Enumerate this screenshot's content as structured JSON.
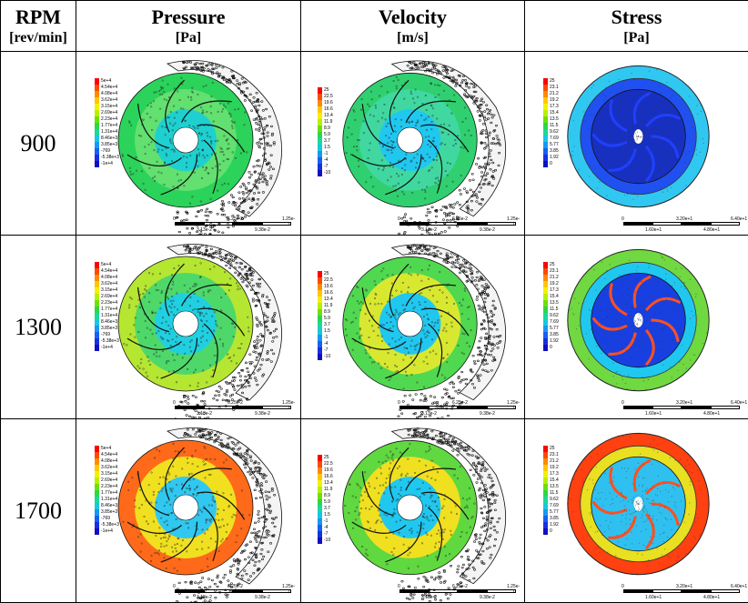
{
  "headers": {
    "rpm": "RPM",
    "rpm_unit": "[rev/min]",
    "cols": [
      {
        "title": "Pressure",
        "unit": "[Pa]"
      },
      {
        "title": "Velocity",
        "unit": "[m/s]"
      },
      {
        "title": "Stress",
        "unit": "[Pa]"
      }
    ]
  },
  "rows": [
    {
      "rpm": "900",
      "variant": 0
    },
    {
      "rpm": "1300",
      "variant": 1
    },
    {
      "rpm": "1700",
      "variant": 2
    }
  ],
  "legends": {
    "pressure": [
      "5e+4",
      "4.54e+4",
      "4.08e+4",
      "3.62e+4",
      "3.15e+4",
      "2.69e+4",
      "2.23e+4",
      "1.77e+4",
      "1.31e+4",
      "8.46e+3",
      "3.85e+3",
      "-769",
      "-5.38e+3",
      "-1e+4"
    ],
    "velocity": [
      "25",
      "22.5",
      "19.6",
      "16.6",
      "13.4",
      "11.9",
      "8.9",
      "5.9",
      "3.7",
      "1.5",
      "-1",
      "-4",
      "-7",
      "-10"
    ],
    "stress": [
      "25",
      "23.1",
      "21.2",
      "19.2",
      "17.3",
      "15.4",
      "13.5",
      "11.5",
      "9.62",
      "7.69",
      "5.77",
      "3.85",
      "1.92",
      "0"
    ]
  },
  "scales": {
    "pressure": {
      "top": [
        "0",
        "6.25e-2",
        "1.25e-1"
      ],
      "bottom": [
        "3.13e-2",
        "9.38e-2"
      ]
    },
    "velocity": {
      "top": [
        "0",
        "6.25e-2",
        "1.25e-1"
      ],
      "bottom": [
        "3.13e-2",
        "9.38e-2"
      ]
    },
    "stress": {
      "top": [
        "0",
        "3.20e+1",
        "6.40e+1"
      ],
      "bottom": [
        "1.60e+1",
        "4.80e+1"
      ]
    }
  },
  "colors": {
    "rainbow": [
      "#ff0000",
      "#ff4a00",
      "#ff8a00",
      "#ffc800",
      "#f5f000",
      "#b8f000",
      "#70e000",
      "#2ad84a",
      "#1ad8a0",
      "#18c8e0",
      "#1898f0",
      "#1860f0",
      "#1830e0",
      "#1010c0"
    ]
  }
}
